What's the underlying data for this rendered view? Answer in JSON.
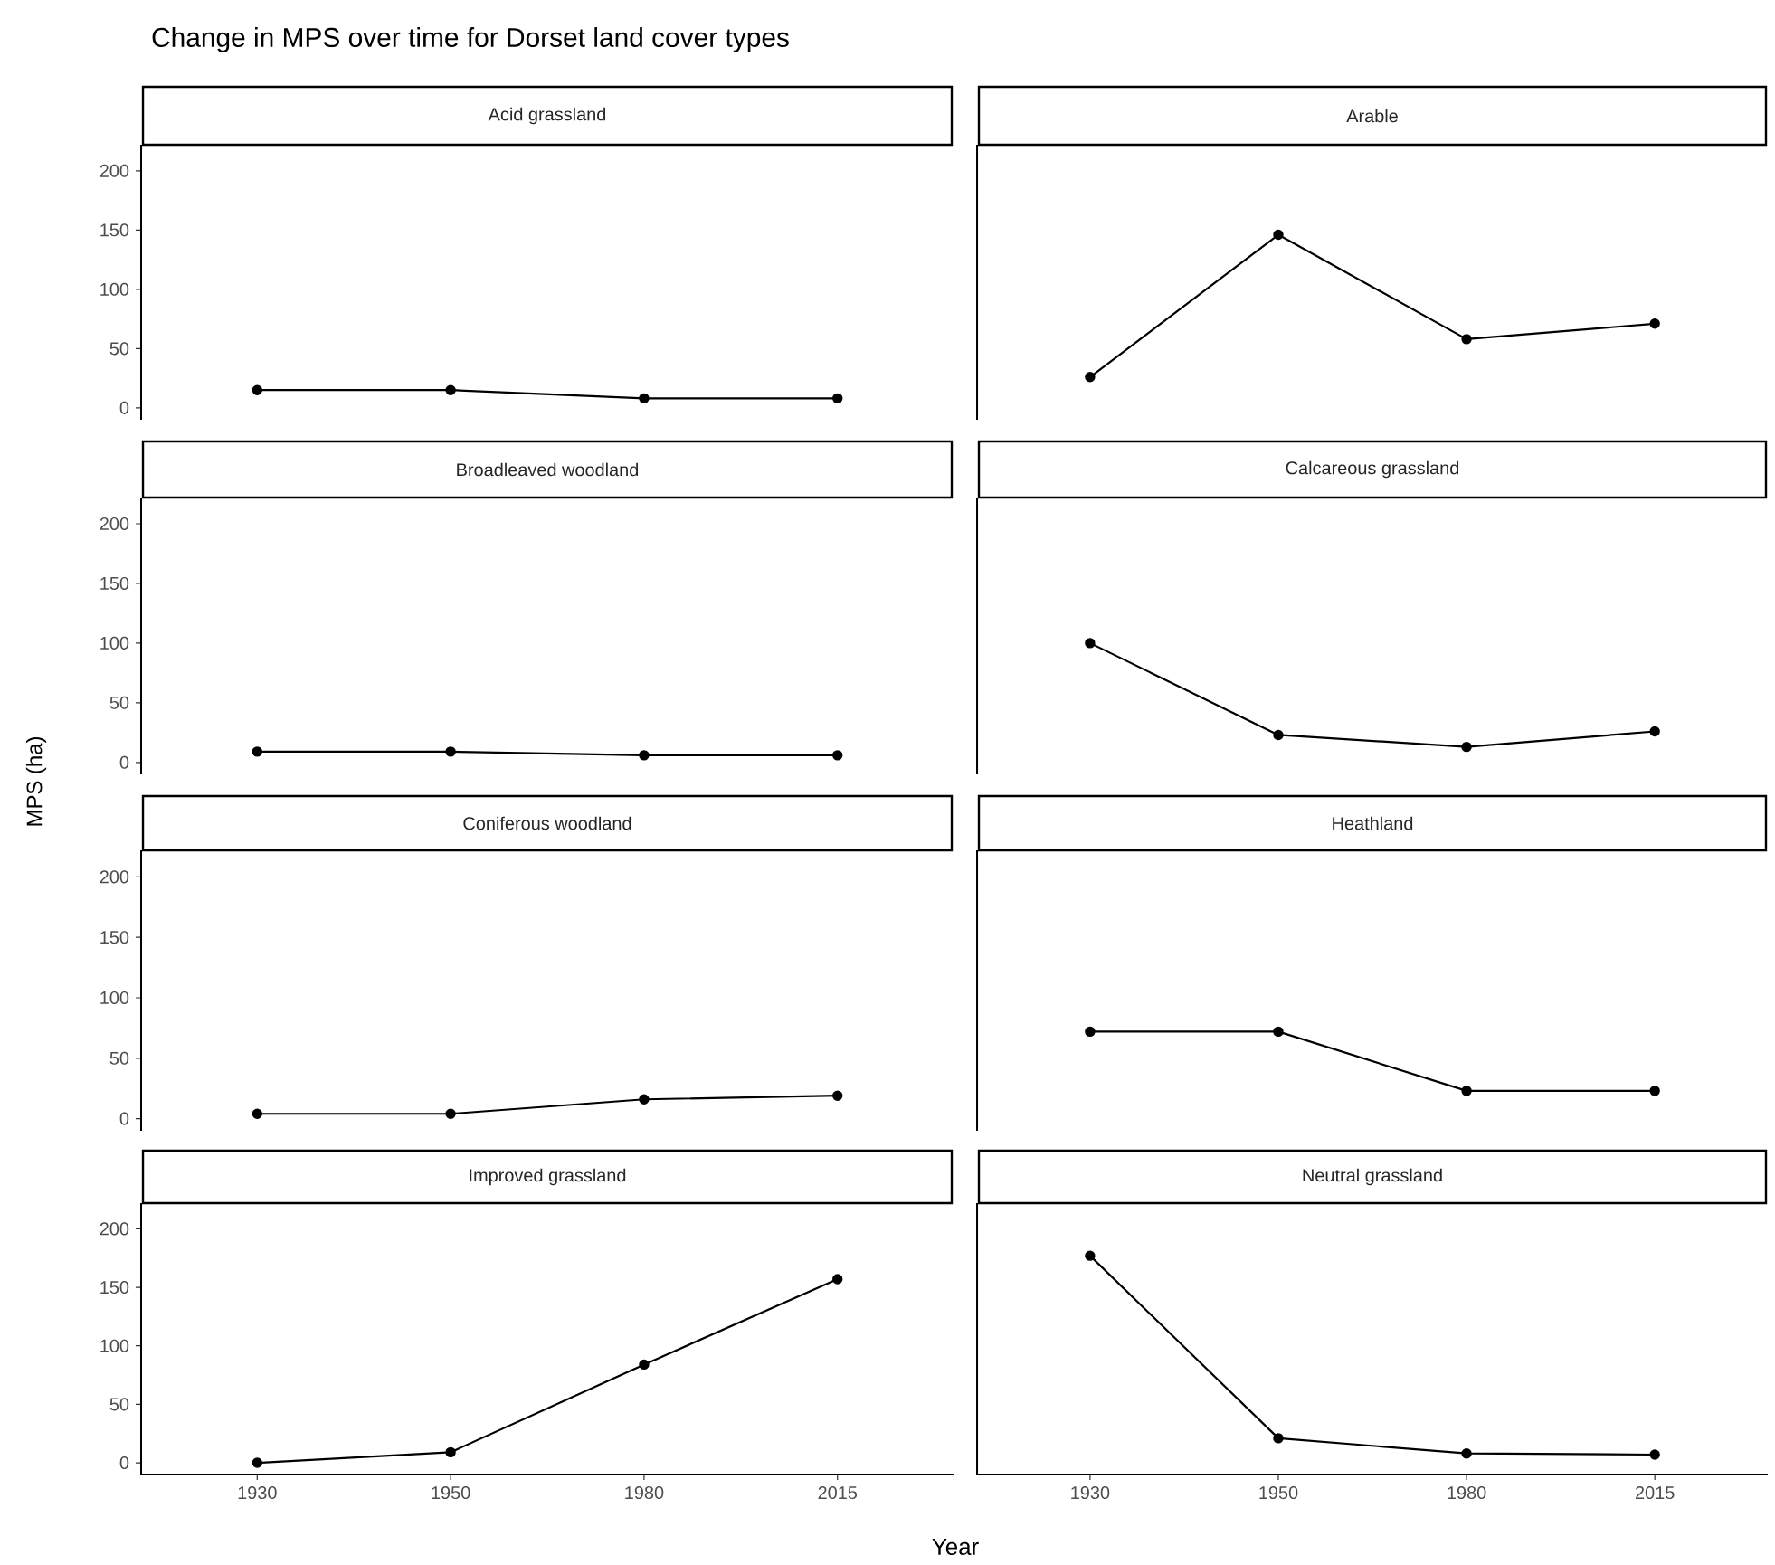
{
  "chart_data": [
    {
      "type": "line",
      "title": "Acid grassland",
      "annotations": [
        "Change in MPS over time for Dorset land cover types"
      ],
      "categories": [
        "1930",
        "1950",
        "1980",
        "2015"
      ],
      "values": [
        15,
        15,
        8,
        8
      ],
      "color": "#000000",
      "marker": "circle",
      "ylim": [
        -10,
        222
      ],
      "yticks": [
        0,
        50,
        100,
        150,
        200
      ],
      "tick_labels": "y"
    },
    {
      "type": "line",
      "title": "Arable",
      "categories": [
        "1930",
        "1950",
        "1980",
        "2015"
      ],
      "values": [
        26,
        146,
        58,
        71
      ],
      "color": "#000000",
      "marker": "circle",
      "ylim": [
        -10,
        222
      ],
      "yticks": [
        0,
        50,
        100,
        150,
        200
      ],
      "tick_labels": false
    },
    {
      "type": "line",
      "title": "Broadleaved woodland",
      "categories": [
        "1930",
        "1950",
        "1980",
        "2015"
      ],
      "values": [
        9,
        9,
        6,
        6
      ],
      "color": "#000000",
      "marker": "circle",
      "ylim": [
        -10,
        222
      ],
      "yticks": [
        0,
        50,
        100,
        150,
        200
      ],
      "tick_labels": "y"
    },
    {
      "type": "line",
      "title": "Calcareous grassland",
      "categories": [
        "1930",
        "1950",
        "1980",
        "2015"
      ],
      "values": [
        100,
        23,
        13,
        26
      ],
      "color": "#000000",
      "marker": "circle",
      "ylim": [
        -10,
        222
      ],
      "yticks": [
        0,
        50,
        100,
        150,
        200
      ],
      "tick_labels": false
    },
    {
      "type": "line",
      "title": "Coniferous woodland",
      "ylabel": "MPS (ha)",
      "categories": [
        "1930",
        "1950",
        "1980",
        "2015"
      ],
      "values": [
        4,
        4,
        16,
        19
      ],
      "color": "#000000",
      "marker": "circle",
      "ylim": [
        -10,
        222
      ],
      "yticks": [
        0,
        50,
        100,
        150,
        200
      ],
      "tick_labels": "y"
    },
    {
      "type": "line",
      "title": "Heathland",
      "categories": [
        "1930",
        "1950",
        "1980",
        "2015"
      ],
      "values": [
        72,
        72,
        23,
        23
      ],
      "color": "#000000",
      "marker": "circle",
      "ylim": [
        -10,
        222
      ],
      "yticks": [
        0,
        50,
        100,
        150,
        200
      ],
      "tick_labels": false
    },
    {
      "type": "line",
      "title": "Improved grassland",
      "xlabel": "Year",
      "categories": [
        "1930",
        "1950",
        "1980",
        "2015"
      ],
      "values": [
        0,
        9,
        84,
        157
      ],
      "color": "#000000",
      "marker": "circle",
      "ylim": [
        -10,
        222
      ],
      "yticks": [
        0,
        50,
        100,
        150,
        200
      ]
    },
    {
      "type": "line",
      "title": "Neutral grassland",
      "categories": [
        "1930",
        "1950",
        "1980",
        "2015"
      ],
      "values": [
        177,
        21,
        8,
        7
      ],
      "color": "#000000",
      "marker": "circle",
      "ylim": [
        -10,
        222
      ],
      "yticks": [
        0,
        50,
        100,
        150,
        200
      ],
      "tick_labels": "x"
    }
  ]
}
